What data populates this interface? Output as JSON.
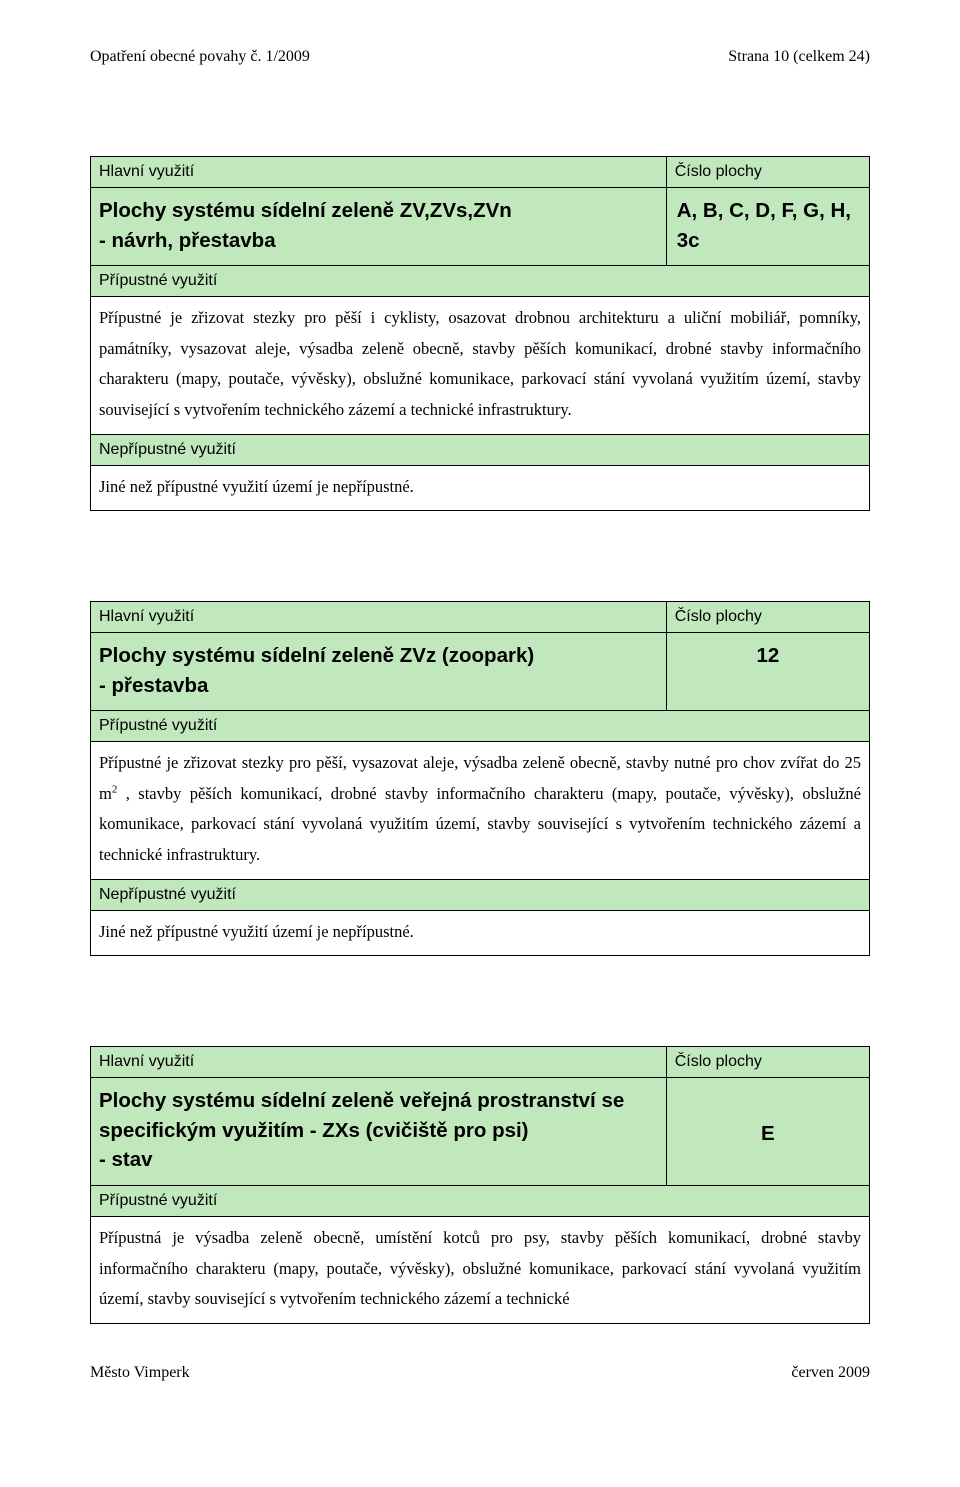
{
  "page": {
    "header_left": "Opatření obecné povahy č. 1/2009",
    "header_right": "Strana 10 (celkem 24)",
    "footer_left": "Město Vimperk",
    "footer_right": "červen 2009"
  },
  "labels": {
    "hlavni": "Hlavní využití",
    "cislo": "Číslo plochy",
    "pripustne": "Přípustné využití",
    "nepripustne": "Nepřípustné využití"
  },
  "block1": {
    "title": "Plochy systému sídelní zeleně ZV,ZVs,ZVn\n- návrh, přestavba",
    "code": "A, B, C, D, F, G, H, 3c",
    "pripustne_text": "Přípustné je zřizovat stezky pro pěší i cyklisty, osazovat drobnou architekturu a uliční mobiliář, pomníky, památníky, vysazovat aleje, výsadba zeleně obecně, stavby pěších komunikací, drobné stavby informačního charakteru (mapy, poutače, vývěsky), obslužné komunikace, parkovací stání vyvolaná využitím území, stavby související s vytvořením technického zázemí a technické infrastruktury.",
    "nepripustne_text": "Jiné než přípustné využití území je nepřípustné."
  },
  "block2": {
    "title": "Plochy systému sídelní zeleně ZVz (zoopark)\n- přestavba",
    "code": "12",
    "pripustne_text_before": "Přípustné je zřizovat stezky pro pěší, vysazovat aleje, výsadba zeleně obecně, stavby nutné pro chov zvířat do 25 m",
    "pripustne_sup": "2",
    "pripustne_text_after": " , stavby pěších komunikací, drobné stavby informačního charakteru (mapy, poutače, vývěsky), obslužné komunikace, parkovací stání vyvolaná využitím území, stavby související s vytvořením technického zázemí a technické infrastruktury.",
    "nepripustne_text": "Jiné než přípustné využití území je nepřípustné."
  },
  "block3": {
    "title": "Plochy systému sídelní zeleně veřejná prostranství se specifickým využitím - ZXs (cvičiště pro psi)\n- stav",
    "code": "E",
    "pripustne_text": "Přípustná je výsadba zeleně obecně, umístění kotců pro psy, stavby pěších komunikací, drobné stavby informačního charakteru (mapy, poutače, vývěsky), obslužné komunikace, parkovací stání vyvolaná využitím území, stavby související s vytvořením technického zázemí a technické"
  },
  "colors": {
    "header_bg": "#c1e7bd",
    "border": "#000000",
    "text": "#000000",
    "page_bg": "#ffffff"
  }
}
